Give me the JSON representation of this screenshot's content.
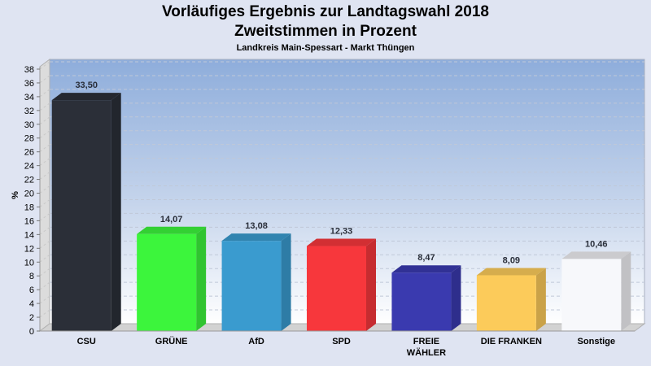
{
  "chart_data": {
    "type": "bar",
    "title": "Vorläufiges Ergebnis zur Landtagswahl 2018",
    "subtitle": "Zweitstimmen in Prozent",
    "subsubtitle": "Landkreis Main-Spessart - Markt Thüngen",
    "xlabel": "",
    "ylabel": "%",
    "ylim": [
      0,
      38
    ],
    "ytick_step": 2,
    "grid": true,
    "categories": [
      "CSU",
      "GRÜNE",
      "AfD",
      "SPD",
      "FREIE WÄHLER",
      "DIE FRANKEN",
      "Sonstige"
    ],
    "category_lines": [
      [
        "CSU"
      ],
      [
        "GRÜNE"
      ],
      [
        "AfD"
      ],
      [
        "SPD"
      ],
      [
        "FREIE",
        "WÄHLER"
      ],
      [
        "DIE FRANKEN"
      ],
      [
        "Sonstige"
      ]
    ],
    "values": [
      33.5,
      14.07,
      13.08,
      12.33,
      8.47,
      8.09,
      10.46
    ],
    "value_labels": [
      "33,50",
      "14,07",
      "13,08",
      "12,33",
      "8,47",
      "8,09",
      "10,46"
    ],
    "colors": [
      "#2b2f38",
      "#3cf53c",
      "#3a9bcf",
      "#f7373c",
      "#3a3aaf",
      "#fccb5a",
      "#f7f8fb"
    ]
  }
}
